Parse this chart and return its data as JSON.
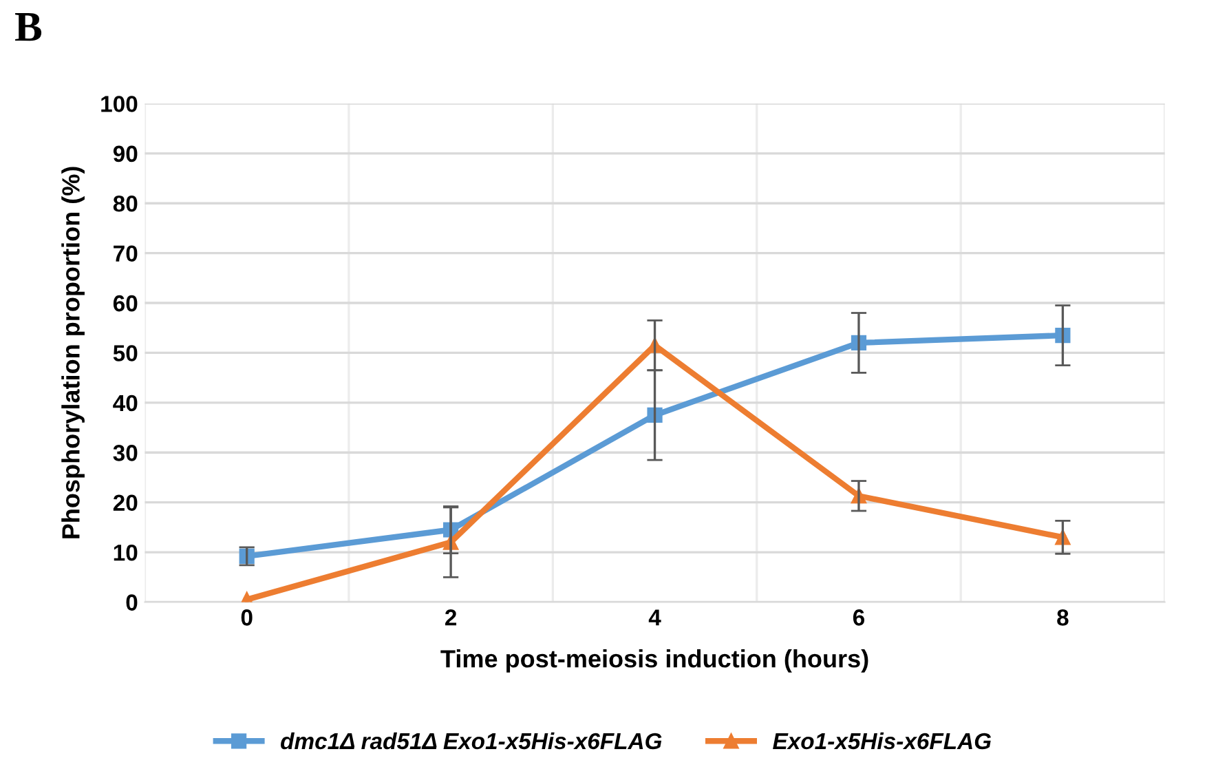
{
  "chart_data": {
    "type": "line",
    "annotations": [
      "B"
    ],
    "xlabel": "Time post-meiosis induction (hours)",
    "ylabel": "Phosphorylation proportion (%)",
    "categories": [
      "0",
      "2",
      "4",
      "6",
      "8"
    ],
    "series": [
      {
        "name": "dmc1Δ rad51Δ Exo1-x5His-x6FLAG",
        "color": "#5b9bd5",
        "marker": "square",
        "values": [
          9.2,
          14.5,
          37.5,
          52,
          53.5
        ],
        "errors": [
          1.8,
          4.7,
          9,
          6,
          6
        ]
      },
      {
        "name": "Exo1-x5His-x6FLAG",
        "color": "#ed7d31",
        "marker": "triangle",
        "values": [
          0.5,
          12,
          51.5,
          21.3,
          13
        ],
        "errors": [
          null,
          7,
          5,
          3,
          3.3
        ]
      }
    ],
    "ylim": [
      0,
      100
    ],
    "yticks": [
      0,
      10,
      20,
      30,
      40,
      50,
      60,
      70,
      80,
      90,
      100
    ],
    "grid": true,
    "legend": "bottom",
    "line_style": "solid"
  }
}
